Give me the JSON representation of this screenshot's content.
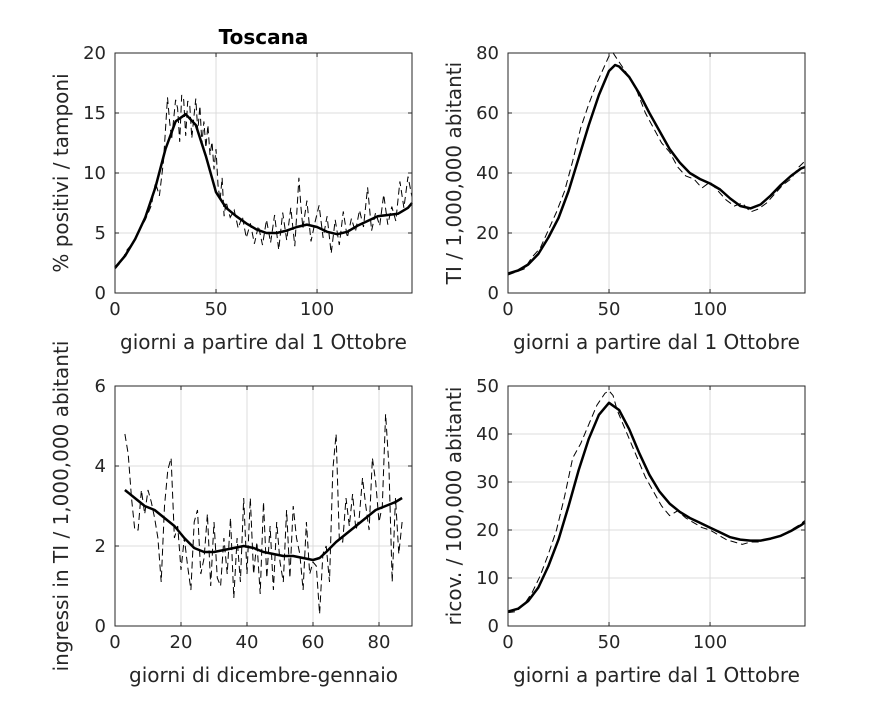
{
  "chart_data": [
    {
      "type": "line",
      "title": "Toscana",
      "xlabel": "giorni a partire dal 1 Ottobre",
      "ylabel": "% positivi / tamponi",
      "xlim": [
        0,
        147
      ],
      "ylim": [
        0,
        20
      ],
      "xticks": [
        0,
        50,
        100
      ],
      "yticks": [
        0,
        5,
        10,
        15,
        20
      ],
      "grid": true,
      "series": [
        {
          "style": "dashed",
          "x": [
            0,
            3,
            6,
            9,
            12,
            15,
            18,
            20,
            22,
            24,
            26,
            27,
            28,
            30,
            31,
            32,
            33,
            34,
            35,
            36,
            37,
            38,
            39,
            40,
            41,
            42,
            43,
            44,
            45,
            46,
            47,
            48,
            49,
            50,
            51,
            52,
            53,
            54,
            55,
            57,
            59,
            61,
            63,
            65,
            67,
            69,
            71,
            73,
            75,
            77,
            79,
            81,
            83,
            85,
            87,
            89,
            91,
            92,
            93,
            95,
            97,
            99,
            101,
            103,
            105,
            107,
            109,
            111,
            113,
            115,
            117,
            119,
            121,
            123,
            125,
            127,
            129,
            131,
            133,
            135,
            137,
            139,
            141,
            143,
            145,
            147
          ],
          "y": [
            2.0,
            2.6,
            3.6,
            4.2,
            5.2,
            6.1,
            7.3,
            9.2,
            8.1,
            11.0,
            16.3,
            14.3,
            12.8,
            16.1,
            15.4,
            12.6,
            16.5,
            16.1,
            13.1,
            16.0,
            15.6,
            12.9,
            14.6,
            16.2,
            13.5,
            15.6,
            12.4,
            14.3,
            12.1,
            14.0,
            11.5,
            12.6,
            10.3,
            12.0,
            9.0,
            7.7,
            9.6,
            6.4,
            7.6,
            6.3,
            6.9,
            5.4,
            6.4,
            4.6,
            5.8,
            4.1,
            5.6,
            4.0,
            6.1,
            4.2,
            6.5,
            3.6,
            6.7,
            4.4,
            7.1,
            3.9,
            9.6,
            7.2,
            5.4,
            7.7,
            4.3,
            5.9,
            7.3,
            4.6,
            6.4,
            3.3,
            6.1,
            4.0,
            6.8,
            4.6,
            6.2,
            5.1,
            6.9,
            5.5,
            8.8,
            5.2,
            6.7,
            5.6,
            8.2,
            5.7,
            7.2,
            6.0,
            9.3,
            7.1,
            9.7,
            8.0
          ]
        },
        {
          "style": "solid",
          "x": [
            0,
            5,
            10,
            15,
            20,
            25,
            30,
            35,
            40,
            45,
            50,
            55,
            60,
            65,
            70,
            75,
            80,
            85,
            90,
            95,
            100,
            105,
            110,
            115,
            120,
            125,
            130,
            135,
            140,
            145,
            147
          ],
          "y": [
            2.1,
            3.1,
            4.5,
            6.3,
            8.8,
            12.0,
            14.3,
            14.9,
            14.0,
            11.4,
            8.4,
            7.1,
            6.4,
            5.8,
            5.3,
            5.0,
            5.0,
            5.2,
            5.5,
            5.7,
            5.5,
            5.1,
            4.9,
            5.1,
            5.6,
            6.0,
            6.4,
            6.5,
            6.6,
            7.1,
            7.5
          ]
        }
      ]
    },
    {
      "type": "line",
      "xlabel": "giorni a partire dal 1 Ottobre",
      "ylabel": "TI / 1,000,000 abitanti",
      "xlim": [
        0,
        147
      ],
      "ylim": [
        0,
        80
      ],
      "xticks": [
        0,
        50,
        100
      ],
      "yticks": [
        0,
        20,
        40,
        60,
        80
      ],
      "grid": true,
      "series": [
        {
          "style": "dashed",
          "x": [
            0,
            4,
            8,
            12,
            16,
            20,
            24,
            28,
            32,
            36,
            40,
            44,
            48,
            50,
            52,
            54,
            56,
            60,
            64,
            68,
            72,
            76,
            80,
            84,
            88,
            92,
            96,
            100,
            104,
            108,
            112,
            116,
            120,
            124,
            128,
            132,
            136,
            140,
            144,
            147
          ],
          "y": [
            6.0,
            7.0,
            8.0,
            12.0,
            15.0,
            21.0,
            27.0,
            34.0,
            44.0,
            55.0,
            63.0,
            70.0,
            76.0,
            79.0,
            80.0,
            78.0,
            76.0,
            72.0,
            67.0,
            60.0,
            55.0,
            50.0,
            47.0,
            42.0,
            39.0,
            38.0,
            35.0,
            37.0,
            34.0,
            31.0,
            29.0,
            30.0,
            27.0,
            28.0,
            30.0,
            33.0,
            36.0,
            38.0,
            42.0,
            44.0
          ]
        },
        {
          "style": "solid",
          "x": [
            0,
            5,
            10,
            15,
            20,
            25,
            30,
            35,
            40,
            45,
            50,
            53,
            55,
            60,
            65,
            70,
            75,
            80,
            85,
            90,
            95,
            100,
            105,
            110,
            115,
            120,
            125,
            130,
            135,
            140,
            145,
            147
          ],
          "y": [
            6.5,
            7.5,
            9.5,
            13.0,
            18.5,
            25.0,
            34.0,
            45.0,
            56.0,
            66.0,
            74.0,
            76.0,
            75.5,
            72.0,
            66.5,
            60.0,
            54.0,
            48.0,
            43.5,
            40.0,
            38.0,
            36.5,
            34.5,
            31.5,
            29.0,
            28.2,
            29.5,
            32.5,
            36.0,
            39.0,
            41.5,
            42.0
          ]
        }
      ]
    },
    {
      "type": "line",
      "xlabel": "giorni di dicembre-gennaio",
      "ylabel": "ingressi in TI / 1,000,000 abitanti",
      "xlim": [
        0,
        90
      ],
      "ylim": [
        0,
        6
      ],
      "xticks": [
        0,
        20,
        40,
        60,
        80
      ],
      "yticks": [
        0,
        2,
        4,
        6
      ],
      "grid": true,
      "series": [
        {
          "style": "dashed",
          "x": [
            3,
            4,
            5,
            6,
            7,
            8,
            9,
            10,
            11,
            12,
            13,
            14,
            15,
            16,
            17,
            18,
            19,
            20,
            21,
            22,
            23,
            24,
            25,
            26,
            27,
            28,
            29,
            30,
            31,
            32,
            33,
            34,
            35,
            36,
            37,
            38,
            39,
            40,
            41,
            42,
            43,
            44,
            45,
            46,
            47,
            48,
            49,
            50,
            51,
            52,
            53,
            54,
            55,
            56,
            57,
            58,
            59,
            60,
            61,
            62,
            63,
            64,
            65,
            66,
            67,
            68,
            69,
            70,
            71,
            72,
            73,
            74,
            75,
            76,
            77,
            78,
            79,
            80,
            81,
            82,
            83,
            84,
            85,
            86,
            87
          ],
          "y": [
            4.8,
            4.3,
            3.2,
            2.4,
            2.4,
            3.4,
            2.8,
            3.4,
            3.1,
            2.7,
            2.2,
            1.1,
            3.0,
            3.9,
            4.2,
            2.2,
            2.5,
            1.4,
            2.2,
            1.5,
            0.9,
            2.6,
            2.9,
            1.3,
            1.7,
            2.8,
            1.0,
            2.6,
            1.2,
            1.0,
            2.2,
            1.3,
            2.7,
            0.7,
            2.2,
            1.1,
            3.2,
            1.3,
            3.2,
            1.3,
            2.1,
            0.8,
            3.1,
            1.2,
            2.5,
            0.9,
            2.6,
            1.6,
            1.1,
            2.9,
            1.2,
            3.0,
            2.2,
            1.8,
            0.9,
            2.6,
            1.3,
            1.6,
            1.5,
            0.3,
            1.8,
            2.0,
            1.1,
            3.9,
            4.8,
            2.1,
            2.1,
            3.2,
            2.5,
            3.3,
            2.4,
            2.7,
            3.7,
            3.0,
            2.4,
            4.2,
            3.6,
            2.6,
            3.0,
            5.3,
            4.0,
            1.1,
            3.2,
            1.8,
            2.6
          ]
        },
        {
          "style": "solid",
          "x": [
            3,
            6,
            9,
            12,
            15,
            18,
            21,
            24,
            27,
            30,
            33,
            36,
            39,
            42,
            45,
            48,
            51,
            54,
            57,
            60,
            62,
            64,
            67,
            70,
            73,
            76,
            79,
            82,
            85,
            87
          ],
          "y": [
            3.4,
            3.2,
            3.0,
            2.9,
            2.7,
            2.5,
            2.2,
            1.95,
            1.85,
            1.85,
            1.9,
            1.95,
            2.0,
            1.95,
            1.85,
            1.8,
            1.75,
            1.75,
            1.7,
            1.65,
            1.7,
            1.85,
            2.1,
            2.3,
            2.5,
            2.7,
            2.9,
            3.0,
            3.1,
            3.2
          ]
        }
      ]
    },
    {
      "type": "line",
      "xlabel": "giorni a partire dal 1 Ottobre",
      "ylabel": "ricov. / 100,000 abitanti",
      "xlim": [
        0,
        147
      ],
      "ylim": [
        0,
        50
      ],
      "xticks": [
        0,
        50,
        100
      ],
      "yticks": [
        0,
        10,
        20,
        30,
        40,
        50
      ],
      "grid": true,
      "series": [
        {
          "style": "dashed",
          "x": [
            0,
            4,
            8,
            12,
            16,
            20,
            24,
            28,
            32,
            36,
            40,
            44,
            48,
            50,
            52,
            54,
            56,
            60,
            64,
            68,
            72,
            76,
            80,
            84,
            88,
            92,
            96,
            100,
            104,
            108,
            112,
            116,
            120,
            124,
            128,
            132,
            136,
            140,
            144,
            147
          ],
          "y": [
            2.8,
            3.0,
            4.5,
            7.0,
            10.5,
            15.0,
            20.0,
            27.0,
            35.0,
            38.0,
            42.0,
            46.0,
            48.5,
            49.0,
            48.0,
            45.0,
            43.0,
            39.0,
            35.0,
            31.0,
            28.0,
            25.0,
            23.0,
            24.0,
            22.5,
            21.5,
            20.5,
            20.0,
            19.0,
            18.0,
            17.5,
            17.0,
            17.5,
            17.5,
            18.0,
            18.5,
            19.0,
            20.0,
            21.0,
            22.0
          ]
        },
        {
          "style": "solid",
          "x": [
            0,
            5,
            10,
            15,
            20,
            25,
            30,
            35,
            40,
            45,
            50,
            55,
            60,
            65,
            70,
            75,
            80,
            85,
            90,
            95,
            100,
            105,
            110,
            115,
            120,
            125,
            130,
            135,
            140,
            145,
            147
          ],
          "y": [
            3.0,
            3.6,
            5.2,
            8.0,
            12.5,
            18.0,
            25.0,
            32.5,
            39.0,
            44.0,
            46.5,
            45.0,
            41.0,
            36.0,
            31.5,
            28.0,
            25.5,
            23.8,
            22.5,
            21.5,
            20.5,
            19.5,
            18.5,
            18.0,
            17.8,
            17.8,
            18.2,
            18.8,
            19.8,
            21.0,
            21.6
          ]
        }
      ]
    }
  ]
}
